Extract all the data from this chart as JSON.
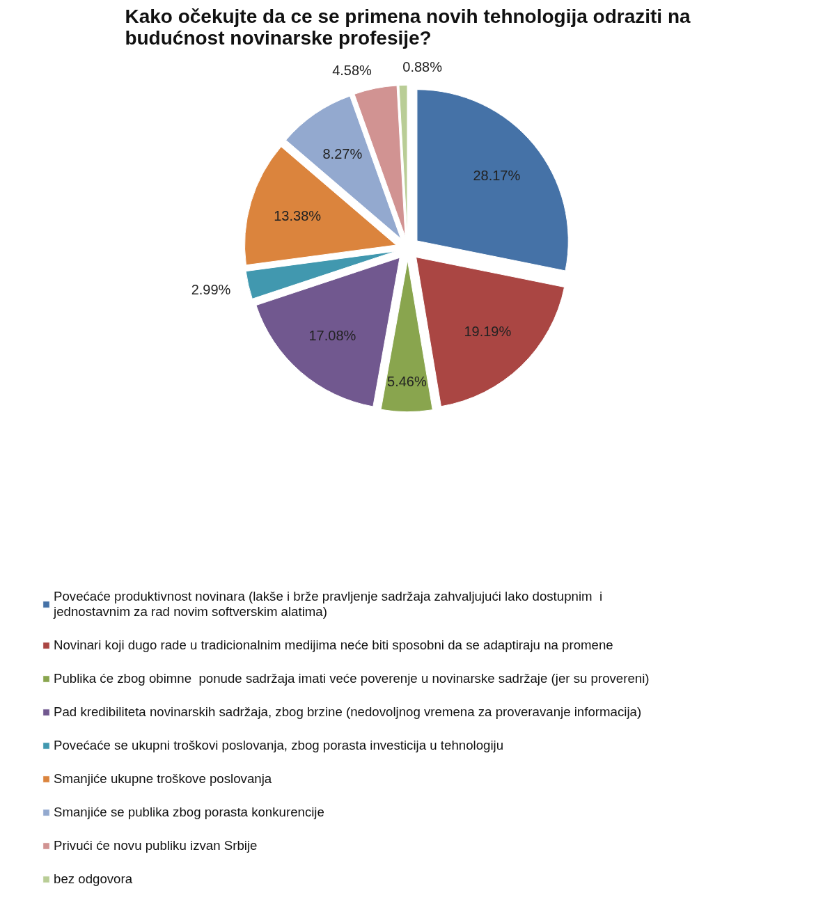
{
  "chart_data": {
    "type": "pie",
    "title": "Kako očekujte da ce se primena novih tehnologija odraziti na budućnost novinarske profesije?",
    "categories": [
      "Povećaće produktivnost novinara (lakše i brže pravljenje sadržaja zahvaljujući lako dostupnim  i jednostavnim za rad novim softverskim alatima)",
      "Novinari koji dugo rade u tradicionalnim medijima neće biti sposobni da se adaptiraju na promene",
      "Publika će zbog obimne  ponude sadržaja imati veće poverenje u novinarske sadržaje (jer su provereni)",
      "Pad kredibiliteta novinarskih sadržaja, zbog brzine (nedovoljnog vremena za proveravanje informacija)",
      "Povećaće se ukupni troškovi poslovanja, zbog porasta investicija u tehnologiju",
      "Smanjiće ukupne troškove poslovanja",
      "Smanjiće se publika zbog porasta konkurencije",
      "Privući će novu publiku izvan Srbije",
      "bez odgovora"
    ],
    "values": [
      28.17,
      19.19,
      5.46,
      17.08,
      2.99,
      13.38,
      8.27,
      4.58,
      0.88
    ],
    "value_labels": [
      "28.17%",
      "19.19%",
      "5.46%",
      "17.08%",
      "2.99%",
      "13.38%",
      "8.27%",
      "4.58%",
      "0.88%"
    ],
    "colors": [
      "#4572a7",
      "#aa4643",
      "#89a54e",
      "#71588f",
      "#4198af",
      "#db843d",
      "#93a9cf",
      "#d19392",
      "#b9cd96"
    ],
    "legend": "bottom"
  }
}
